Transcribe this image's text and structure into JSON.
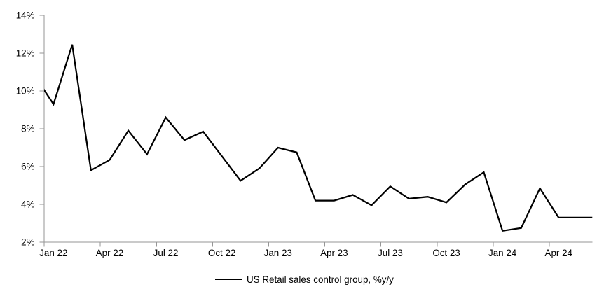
{
  "chart_data": {
    "type": "line",
    "title": "",
    "xlabel": "",
    "ylabel": "",
    "ylim": [
      2,
      14
    ],
    "y_tick_step": 2,
    "grid": false,
    "legend_position": "bottom",
    "y_tick_values": [
      2,
      4,
      6,
      8,
      10,
      12,
      14
    ],
    "y_tick_labels": [
      "2%",
      "4%",
      "6%",
      "8%",
      "10%",
      "12%",
      "14%"
    ],
    "x_tick_labels": [
      "Jan 22",
      "Apr 22",
      "Jul 22",
      "Oct 22",
      "Jan 23",
      "Apr 23",
      "Jul 23",
      "Oct 23",
      "Jan 24",
      "Apr 24"
    ],
    "x_label_interval_months": 3,
    "clipped_endpoints_note": "first and last points extend slightly beyond the plot area and are clipped at the axes",
    "series": [
      {
        "name": "US Retail sales control group, %y/y",
        "color": "#000000",
        "months": [
          "Dec 21",
          "Jan 22",
          "Feb 22",
          "Mar 22",
          "Apr 22",
          "May 22",
          "Jun 22",
          "Jul 22",
          "Aug 22",
          "Sep 22",
          "Oct 22",
          "Nov 22",
          "Dec 22",
          "Jan 23",
          "Feb 23",
          "Mar 23",
          "Apr 23",
          "May 23",
          "Jun 23",
          "Jul 23",
          "Aug 23",
          "Sep 23",
          "Oct 23",
          "Nov 23",
          "Dec 23",
          "Jan 24",
          "Feb 24",
          "Mar 24",
          "Apr 24",
          "May 24",
          "Jun 24"
        ],
        "values": [
          10.8,
          9.3,
          12.45,
          5.8,
          6.35,
          7.9,
          6.65,
          8.6,
          7.4,
          7.85,
          6.55,
          5.25,
          5.9,
          7.0,
          6.75,
          4.2,
          4.2,
          4.5,
          3.95,
          4.95,
          4.3,
          4.4,
          4.1,
          5.05,
          5.7,
          2.6,
          2.75,
          4.85,
          3.3,
          3.3,
          3.3
        ]
      }
    ],
    "axis_color": "#969696",
    "text_color": "#000000",
    "background_color": "#ffffff"
  },
  "legend": {
    "label": "US Retail sales control group, %y/y"
  }
}
